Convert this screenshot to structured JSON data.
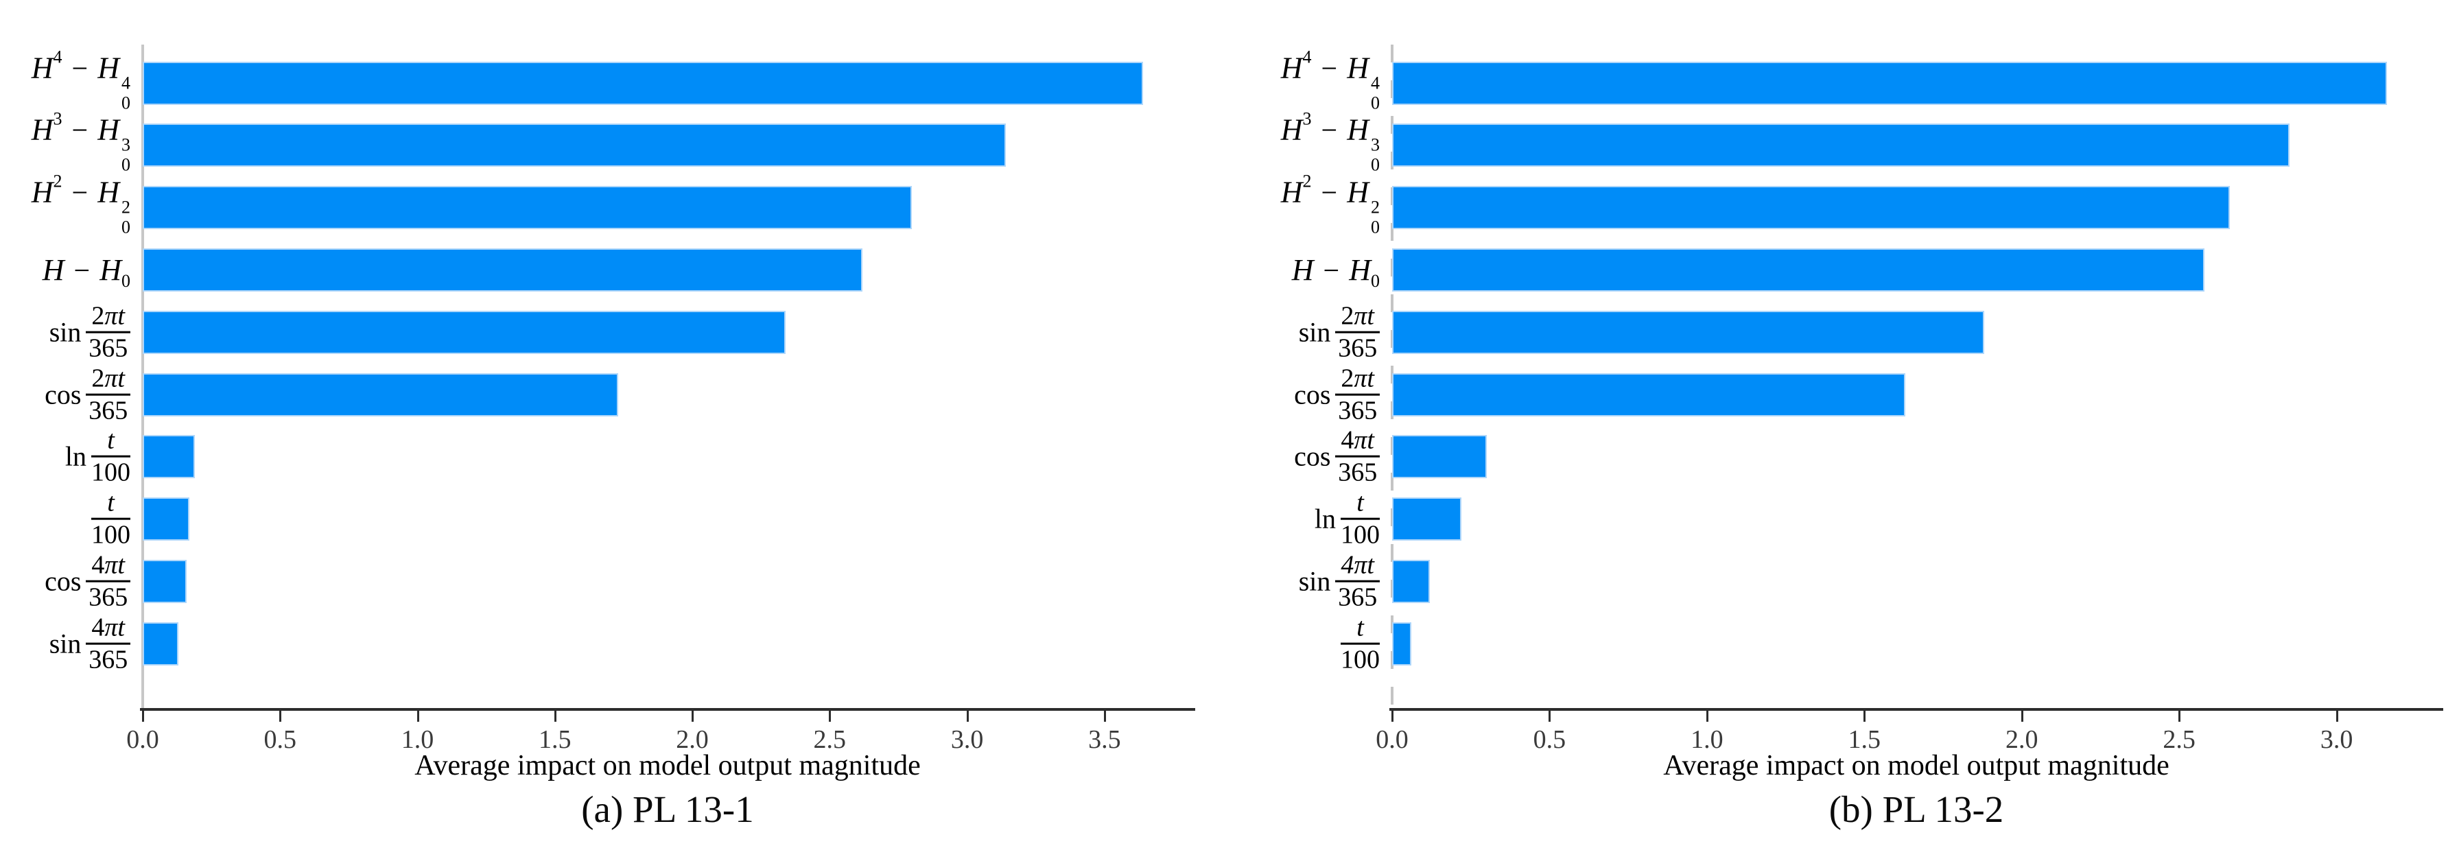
{
  "page": {
    "background": "#ffffff"
  },
  "chart_data": [
    {
      "type": "bar",
      "orientation": "horizontal",
      "caption": "(a) PL 13-1",
      "xlabel": "Average impact on model output magnitude",
      "xlim": [
        0,
        3.82
      ],
      "xticks": [
        "0.0",
        "0.5",
        "1.0",
        "1.5",
        "2.0",
        "2.5",
        "3.0",
        "3.5"
      ],
      "grid": false,
      "legend": null,
      "zero_line_style": "solid",
      "bar_color": "#008CF8",
      "bar_edge_color": "#AED6FA",
      "rows": [
        {
          "name": "H^4 - H_0^4",
          "value": 3.64,
          "label": {
            "type": "terms",
            "terms": [
              {
                "b": "H",
                "sup": "4"
              },
              {
                "op": "−"
              },
              {
                "b": "H",
                "sup": "4",
                "sub": "0"
              }
            ]
          }
        },
        {
          "name": "H^3 - H_0^3",
          "value": 3.14,
          "label": {
            "type": "terms",
            "terms": [
              {
                "b": "H",
                "sup": "3"
              },
              {
                "op": "−"
              },
              {
                "b": "H",
                "sup": "3",
                "sub": "0"
              }
            ]
          }
        },
        {
          "name": "H^2 - H_0^2",
          "value": 2.8,
          "label": {
            "type": "terms",
            "terms": [
              {
                "b": "H",
                "sup": "2"
              },
              {
                "op": "−"
              },
              {
                "b": "H",
                "sup": "2",
                "sub": "0"
              }
            ]
          }
        },
        {
          "name": "H - H_0",
          "value": 2.62,
          "label": {
            "type": "terms",
            "terms": [
              {
                "b": "H"
              },
              {
                "op": "−"
              },
              {
                "b": "H",
                "sub": "0"
              }
            ]
          }
        },
        {
          "name": "sin(2πt/365)",
          "value": 2.34,
          "label": {
            "type": "frac",
            "fn": "sin",
            "num": [
              [
                "2",
                0
              ],
              [
                "πt",
                1
              ]
            ],
            "den": "365"
          }
        },
        {
          "name": "cos(2πt/365)",
          "value": 1.73,
          "label": {
            "type": "frac",
            "fn": "cos",
            "num": [
              [
                "2",
                0
              ],
              [
                "πt",
                1
              ]
            ],
            "den": "365"
          }
        },
        {
          "name": "ln(t/100)",
          "value": 0.19,
          "label": {
            "type": "frac",
            "fn": "ln",
            "num": [
              [
                "t",
                1
              ]
            ],
            "den": "100"
          }
        },
        {
          "name": "t/100",
          "value": 0.17,
          "label": {
            "type": "frac",
            "fn": "",
            "num": [
              [
                "t",
                1
              ]
            ],
            "den": "100"
          }
        },
        {
          "name": "cos(4πt/365)",
          "value": 0.16,
          "label": {
            "type": "frac",
            "fn": "cos",
            "num": [
              [
                "4",
                0
              ],
              [
                "πt",
                1
              ]
            ],
            "den": "365"
          }
        },
        {
          "name": "sin(4πt/365)",
          "value": 0.13,
          "label": {
            "type": "frac",
            "fn": "sin",
            "num": [
              [
                "4",
                0
              ],
              [
                "πt",
                1
              ]
            ],
            "den": "365"
          }
        }
      ]
    },
    {
      "type": "bar",
      "orientation": "horizontal",
      "caption": "(b) PL 13-2",
      "xlabel": "Average impact on model output magnitude",
      "xlim": [
        0,
        3.33
      ],
      "xticks": [
        "0.0",
        "0.5",
        "1.0",
        "1.5",
        "2.0",
        "2.5",
        "3.0"
      ],
      "grid": false,
      "legend": null,
      "zero_line_style": "dashed",
      "bar_color": "#008CF8",
      "bar_edge_color": "#AED6FA",
      "rows": [
        {
          "name": "H^4 - H_0^4",
          "value": 3.16,
          "label": {
            "type": "terms",
            "terms": [
              {
                "b": "H",
                "sup": "4"
              },
              {
                "op": "−"
              },
              {
                "b": "H",
                "sup": "4",
                "sub": "0"
              }
            ]
          }
        },
        {
          "name": "H^3 - H_0^3",
          "value": 2.85,
          "label": {
            "type": "terms",
            "terms": [
              {
                "b": "H",
                "sup": "3"
              },
              {
                "op": "−"
              },
              {
                "b": "H",
                "sup": "3",
                "sub": "0"
              }
            ]
          }
        },
        {
          "name": "H^2 - H_0^2",
          "value": 2.66,
          "label": {
            "type": "terms",
            "terms": [
              {
                "b": "H",
                "sup": "2"
              },
              {
                "op": "−"
              },
              {
                "b": "H",
                "sup": "2",
                "sub": "0"
              }
            ]
          }
        },
        {
          "name": "H - H_0",
          "value": 2.58,
          "label": {
            "type": "terms",
            "terms": [
              {
                "b": "H"
              },
              {
                "op": "−"
              },
              {
                "b": "H",
                "sub": "0"
              }
            ]
          }
        },
        {
          "name": "sin(2πt/365)",
          "value": 1.88,
          "label": {
            "type": "frac",
            "fn": "sin",
            "num": [
              [
                "2",
                0
              ],
              [
                "πt",
                1
              ]
            ],
            "den": "365"
          }
        },
        {
          "name": "cos(2πt/365)",
          "value": 1.63,
          "label": {
            "type": "frac",
            "fn": "cos",
            "num": [
              [
                "2",
                0
              ],
              [
                "πt",
                1
              ]
            ],
            "den": "365"
          }
        },
        {
          "name": "cos(4πt/365)",
          "value": 0.3,
          "label": {
            "type": "frac",
            "fn": "cos",
            "num": [
              [
                "4",
                0
              ],
              [
                "πt",
                1
              ]
            ],
            "den": "365"
          }
        },
        {
          "name": "ln(t/100)",
          "value": 0.22,
          "label": {
            "type": "frac",
            "fn": "ln",
            "num": [
              [
                "t",
                1
              ]
            ],
            "den": "100"
          }
        },
        {
          "name": "sin(4πt/365)",
          "value": 0.12,
          "label": {
            "type": "frac",
            "fn": "sin",
            "num": [
              [
                "4",
                1
              ],
              [
                "πt",
                1
              ]
            ],
            "den": "365"
          }
        },
        {
          "name": "t/100",
          "value": 0.06,
          "label": {
            "type": "frac",
            "fn": "",
            "num": [
              [
                "t",
                1
              ]
            ],
            "den": "100"
          }
        }
      ]
    }
  ]
}
